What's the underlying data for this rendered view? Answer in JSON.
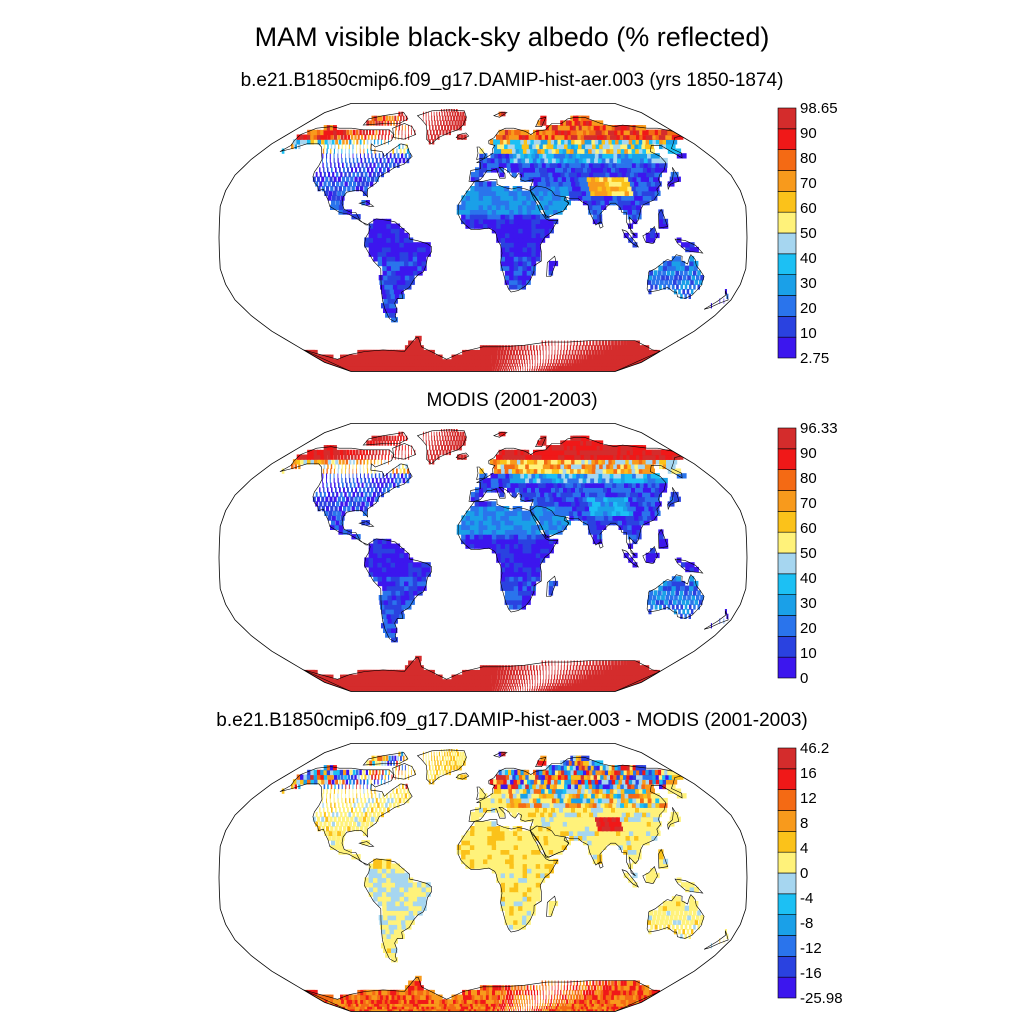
{
  "title": "MAM visible black-sky albedo (% reflected)",
  "colors": {
    "levels": [
      "#3c16ee",
      "#2a42e0",
      "#2a74ec",
      "#1aa0e8",
      "#1cc0f4",
      "#a6d6f0",
      "#fff27a",
      "#fbc21a",
      "#f89a1c",
      "#f46a14",
      "#f01818",
      "#d42c2c"
    ],
    "land_masked": "#ffffff",
    "coastline": "#000000",
    "map_outline": "#000000"
  },
  "panels": [
    {
      "id": "model",
      "title": "b.e21.B1850cmip6.f09_g17.DAMIP-hist-aer.003 (yrs 1850-1874)",
      "colorbar_labels": [
        "98.65",
        "90",
        "80",
        "70",
        "60",
        "50",
        "40",
        "30",
        "20",
        "10",
        "2.75"
      ]
    },
    {
      "id": "obs",
      "title": "MODIS (2001-2003)",
      "colorbar_labels": [
        "96.33",
        "90",
        "80",
        "70",
        "60",
        "50",
        "40",
        "30",
        "20",
        "10",
        "0"
      ]
    },
    {
      "id": "diff",
      "title": "b.e21.B1850cmip6.f09_g17.DAMIP-hist-aer.003 - MODIS (2001-2003)",
      "colorbar_labels": [
        "46.2",
        "16",
        "12",
        "8",
        "4",
        "0",
        "-4",
        "-8",
        "-12",
        "-16",
        "-25.98"
      ]
    }
  ]
}
